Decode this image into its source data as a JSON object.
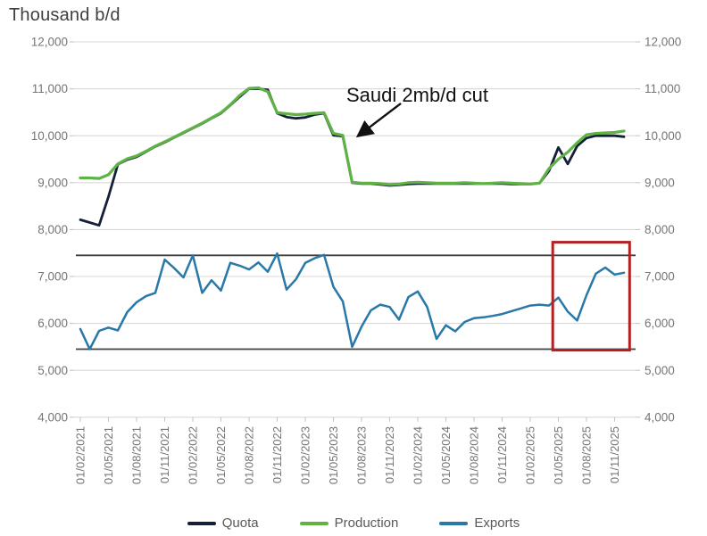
{
  "title": "Thousand b/d",
  "annotation": {
    "text": "Saudi 2mb/d cut"
  },
  "legend": {
    "items": [
      {
        "label": "Quota",
        "color": "#141f38"
      },
      {
        "label": "Production",
        "color": "#5fb344"
      },
      {
        "label": "Exports",
        "color": "#2878a8"
      }
    ]
  },
  "chart_data": {
    "type": "line",
    "title": "Thousand b/d",
    "x_start": "01/02/2021",
    "x_frequency": "monthly",
    "n_points": 59,
    "x_tick_labels": [
      "01/02/2021",
      "01/05/2021",
      "01/08/2021",
      "01/11/2021",
      "01/02/2022",
      "01/05/2022",
      "01/08/2022",
      "01/11/2022",
      "01/02/2023",
      "01/05/2023",
      "01/08/2023",
      "01/11/2023",
      "01/02/2024",
      "01/05/2024",
      "01/08/2024",
      "01/11/2024",
      "01/02/2025",
      "01/05/2025",
      "01/08/2025",
      "01/11/2025"
    ],
    "x_tick_every": 3,
    "ylim": [
      4000,
      12000
    ],
    "y_ticks": [
      12000,
      11000,
      10000,
      9000,
      8000,
      7000,
      6000,
      5000,
      4000
    ],
    "y_tick_labels": [
      "12,000",
      "11,000",
      "10,000",
      "9,000",
      "8,000",
      "7,000",
      "6,000",
      "5,000",
      "4,000"
    ],
    "grid": true,
    "legend_position": "bottom",
    "series": [
      {
        "name": "Quota",
        "color": "#141f38",
        "width": 2.8,
        "values": [
          8210,
          8150,
          8090,
          8700,
          9390,
          9490,
          9550,
          9660,
          9770,
          9860,
          9960,
          10060,
          10160,
          10260,
          10370,
          10480,
          10650,
          10830,
          11000,
          11000,
          10980,
          10480,
          10400,
          10370,
          10390,
          10450,
          10480,
          10010,
          9990,
          9000,
          8980,
          8980,
          8960,
          8940,
          8950,
          8970,
          8980,
          8980,
          8980,
          8980,
          8980,
          8980,
          8980,
          8980,
          8980,
          8980,
          8970,
          8970,
          8970,
          8990,
          9250,
          9750,
          9400,
          9780,
          9950,
          10000,
          10000,
          10000,
          9980
        ]
      },
      {
        "name": "Production",
        "color": "#5fb344",
        "width": 3.2,
        "values": [
          9100,
          9100,
          9090,
          9170,
          9400,
          9510,
          9570,
          9670,
          9780,
          9870,
          9970,
          10070,
          10170,
          10270,
          10380,
          10490,
          10660,
          10860,
          11010,
          11020,
          10940,
          10490,
          10470,
          10450,
          10460,
          10480,
          10490,
          10050,
          10010,
          9010,
          8990,
          8990,
          8980,
          8960,
          8970,
          9000,
          9010,
          9000,
          8990,
          8990,
          8990,
          9000,
          8990,
          8980,
          8990,
          9000,
          8990,
          8980,
          8970,
          8990,
          9300,
          9500,
          9650,
          9850,
          10020,
          10050,
          10060,
          10070,
          10100
        ]
      },
      {
        "name": "Exports",
        "color": "#2878a8",
        "width": 2.5,
        "values": [
          5880,
          5450,
          5840,
          5910,
          5850,
          6240,
          6450,
          6580,
          6650,
          7360,
          7180,
          6980,
          7450,
          6650,
          6920,
          6700,
          7290,
          7230,
          7150,
          7300,
          7100,
          7490,
          6720,
          6940,
          7290,
          7390,
          7460,
          6780,
          6470,
          5500,
          5930,
          6280,
          6400,
          6350,
          6080,
          6560,
          6680,
          6350,
          5670,
          5960,
          5830,
          6030,
          6110,
          6130,
          6160,
          6200,
          6260,
          6320,
          6380,
          6400,
          6380,
          6550,
          6250,
          6060,
          6600,
          7060,
          7190,
          7040,
          7080
        ]
      }
    ],
    "reference_lines": [
      {
        "value": 7450,
        "color": "#404040"
      },
      {
        "value": 5450,
        "color": "#404040"
      }
    ],
    "highlight_box": {
      "color": "#b22222",
      "start_index": 50.4,
      "end_index": 58.6,
      "y_top": 7730,
      "y_bottom": 5430
    },
    "annotation": {
      "text": "Saudi 2mb/d cut",
      "arrow_from": {
        "index": 34.2,
        "value": 10690
      },
      "arrow_to": {
        "index": 29.6,
        "value": 9990
      }
    }
  }
}
